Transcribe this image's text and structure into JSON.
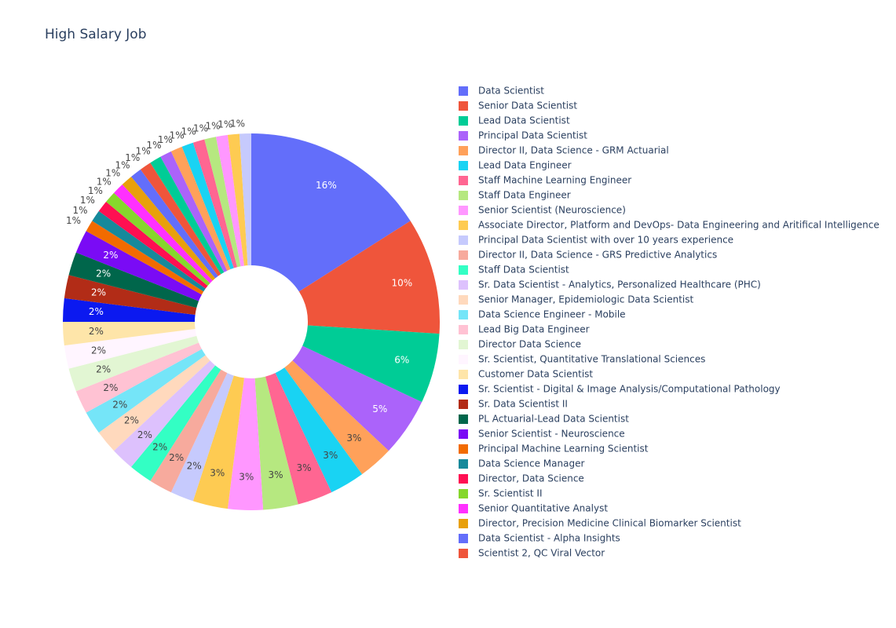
{
  "chart_data": {
    "type": "pie",
    "title": "High Salary Job",
    "hole": 0.3,
    "categories": [
      "Data Scientist",
      "Senior Data Scientist",
      "Lead Data Scientist",
      "Principal Data Scientist",
      "Director II, Data Science - GRM Actuarial",
      "Lead Data Engineer",
      "Staff Machine Learning Engineer",
      "Staff Data Engineer",
      "Senior Scientist (Neuroscience)",
      "Associate Director, Platform and DevOps- Data Engineering and Aritifical Intelligence",
      "Principal Data Scientist with over 10 years experience",
      "Director II, Data Science - GRS Predictive Analytics",
      "Staff Data Scientist",
      "Sr. Data Scientist - Analytics, Personalized Healthcare (PHC)",
      "Senior Manager, Epidemiologic Data Scientist",
      "Data Science Engineer - Mobile",
      "Lead Big Data Engineer",
      "Director Data Science",
      "Sr. Scientist, Quantitative Translational Sciences",
      "Customer Data Scientist",
      "Sr. Scientist - Digital & Image Analysis/Computational Pathology",
      "Sr. Data Scientist II",
      "PL Actuarial-Lead Data Scientist",
      "Senior Scientist - Neuroscience",
      "Principal Machine Learning Scientist",
      "Data Science Manager",
      "Director, Data Science",
      "Sr. Scientist II",
      "Senior Quantitative Analyst",
      "Director, Precision Medicine Clinical Biomarker Scientist",
      "Data Scientist - Alpha Insights",
      "Scientist 2, QC Viral Vector",
      null,
      null,
      null,
      null,
      null,
      null,
      null,
      null,
      null
    ],
    "values": [
      16,
      10,
      6,
      5,
      3,
      3,
      3,
      3,
      3,
      3,
      2,
      2,
      2,
      2,
      2,
      2,
      2,
      2,
      2,
      2,
      2,
      2,
      2,
      2,
      1,
      1,
      1,
      1,
      1,
      1,
      1,
      1,
      1,
      1,
      1,
      1,
      1,
      1,
      1,
      1,
      1
    ],
    "value_labels": [
      "16%",
      "10%",
      "6%",
      "5%",
      "3%",
      "3%",
      "3%",
      "3%",
      "3%",
      "3%",
      "2%",
      "2%",
      "2%",
      "2%",
      "2%",
      "2%",
      "2%",
      "2%",
      "2%",
      "2%",
      "2%",
      "2%",
      "2%",
      "2%",
      "1%",
      "1%",
      "1%",
      "1%",
      "1%",
      "1%",
      "1%",
      "1%",
      "1%",
      "1%",
      "1%",
      "1%",
      "1%",
      "1%",
      "1%",
      "1%",
      "1%"
    ],
    "colors": [
      "#636efa",
      "#ef553b",
      "#00cc96",
      "#ab63fa",
      "#ffa15a",
      "#19d3f3",
      "#ff6692",
      "#b6e880",
      "#ff97ff",
      "#fecb52",
      "#c6cafd",
      "#f7aa9d",
      "#33ffc4",
      "#ddc1fd",
      "#ffd9bd",
      "#75e5f8",
      "#ffc2d3",
      "#e2f6d3",
      "#fff5ff",
      "#fee5a9",
      "#0b19f0",
      "#b22c17",
      "#00664b",
      "#7a0bf5",
      "#f26b00",
      "#16899b",
      "#ff0f52",
      "#86d72c",
      "#ff30ff",
      "#e8a00b",
      "#636efa",
      "#ef553b",
      "#00cc96",
      "#ab63fa",
      "#ffa15a",
      "#19d3f3",
      "#ff6692",
      "#b6e880",
      "#ff97ff",
      "#fecb52",
      "#c6cafd"
    ]
  }
}
